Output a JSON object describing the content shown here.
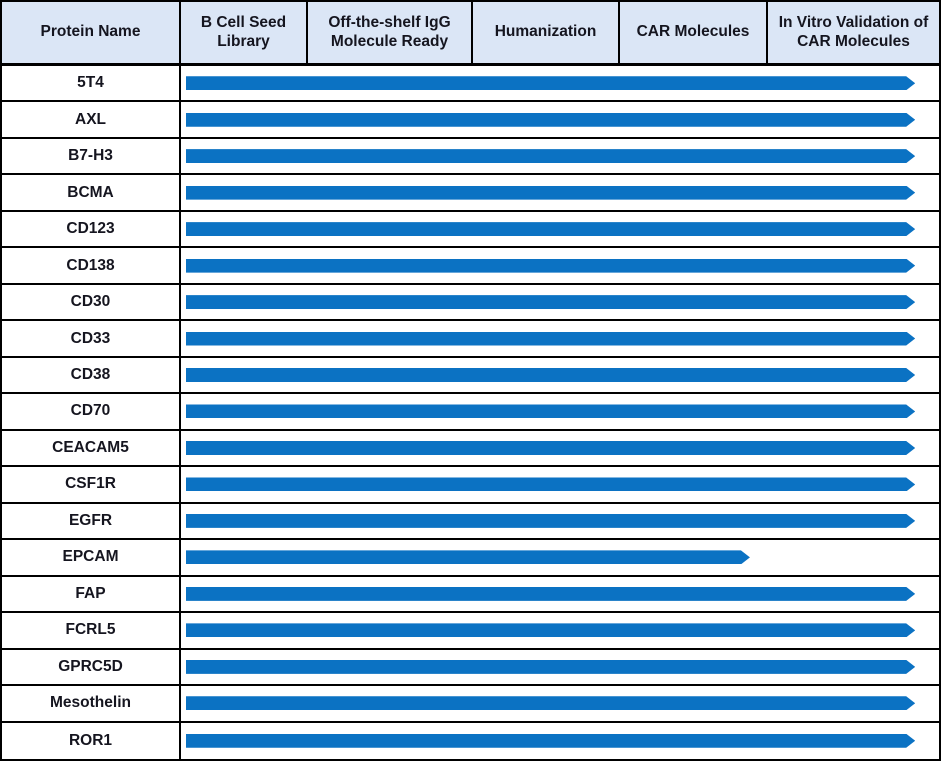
{
  "colors": {
    "bar": "#0b72c3",
    "header_bg": "#dbe6f6",
    "border": "#000000",
    "text": "#15151f"
  },
  "table": {
    "columns": [
      {
        "label": "Protein Name"
      },
      {
        "label": "B Cell Seed Library"
      },
      {
        "label": "Off-the-shelf IgG Molecule Ready"
      },
      {
        "label": "Humanization"
      },
      {
        "label": "CAR Molecules"
      },
      {
        "label": "In Vitro Validation of CAR Molecules"
      }
    ],
    "rows": [
      {
        "protein": "5T4",
        "stages_completed": 5,
        "extent": 0.962
      },
      {
        "protein": "AXL",
        "stages_completed": 5,
        "extent": 0.962
      },
      {
        "protein": "B7-H3",
        "stages_completed": 5,
        "extent": 0.962
      },
      {
        "protein": "BCMA",
        "stages_completed": 5,
        "extent": 0.962
      },
      {
        "protein": "CD123",
        "stages_completed": 5,
        "extent": 0.962
      },
      {
        "protein": "CD138",
        "stages_completed": 5,
        "extent": 0.962
      },
      {
        "protein": "CD30",
        "stages_completed": 5,
        "extent": 0.962
      },
      {
        "protein": "CD33",
        "stages_completed": 5,
        "extent": 0.962
      },
      {
        "protein": "CD38",
        "stages_completed": 5,
        "extent": 0.962
      },
      {
        "protein": "CD70",
        "stages_completed": 5,
        "extent": 0.962
      },
      {
        "protein": "CEACAM5",
        "stages_completed": 5,
        "extent": 0.962
      },
      {
        "protein": "CSF1R",
        "stages_completed": 5,
        "extent": 0.962
      },
      {
        "protein": "EGFR",
        "stages_completed": 5,
        "extent": 0.962
      },
      {
        "protein": "EPCAM",
        "stages_completed": 4,
        "extent": 0.744
      },
      {
        "protein": "FAP",
        "stages_completed": 5,
        "extent": 0.962
      },
      {
        "protein": "FCRL5",
        "stages_completed": 5,
        "extent": 0.962
      },
      {
        "protein": "GPRC5D",
        "stages_completed": 5,
        "extent": 0.962
      },
      {
        "protein": "Mesothelin",
        "stages_completed": 5,
        "extent": 0.962
      },
      {
        "protein": "ROR1",
        "stages_completed": 5,
        "extent": 0.962
      }
    ]
  },
  "chart_data": {
    "type": "bar",
    "title": "",
    "orientation": "horizontal",
    "categories": [
      "5T4",
      "AXL",
      "B7-H3",
      "BCMA",
      "CD123",
      "CD138",
      "CD30",
      "CD33",
      "CD38",
      "CD70",
      "CEACAM5",
      "CSF1R",
      "EGFR",
      "EPCAM",
      "FAP",
      "FCRL5",
      "GPRC5D",
      "Mesothelin",
      "ROR1"
    ],
    "values": [
      5,
      5,
      5,
      5,
      5,
      5,
      5,
      5,
      5,
      5,
      5,
      5,
      5,
      4,
      5,
      5,
      5,
      5,
      5
    ],
    "xlabel": "",
    "ylabel": "Protein Name",
    "stages": [
      "B Cell Seed Library",
      "Off-the-shelf IgG Molecule Ready",
      "Humanization",
      "CAR Molecules",
      "In Vitro Validation of CAR Molecules"
    ],
    "value_meaning": "number of pipeline stages covered by the blue arrow",
    "xlim": [
      0,
      5
    ],
    "grid": false,
    "legend": false
  }
}
